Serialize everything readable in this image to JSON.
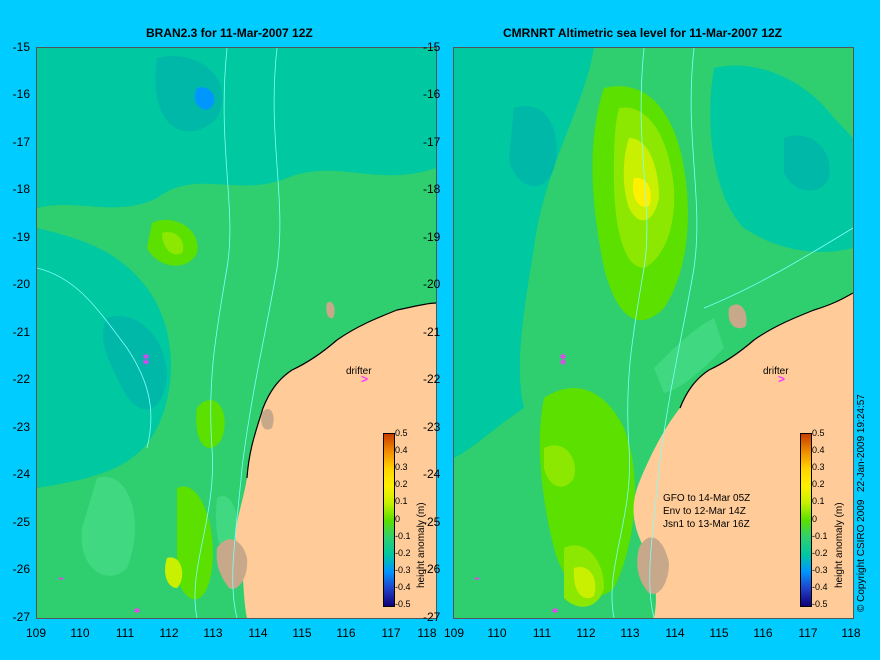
{
  "left_title": "BRAN2.3 for 11-Mar-2007 12Z",
  "right_title": "CMRNRT Altimetric sea level  for 11-Mar-2007 12Z",
  "y_ticks": [
    "-15",
    "-16",
    "-17",
    "-18",
    "-19",
    "-20",
    "-21",
    "-22",
    "-23",
    "-24",
    "-25",
    "-26",
    "-27"
  ],
  "x_ticks_left": [
    "109",
    "110",
    "111",
    "112",
    "113",
    "114",
    "115",
    "116",
    "117",
    "118"
  ],
  "x_ticks_right": [
    "109",
    "110",
    "111",
    "112",
    "113",
    "114",
    "115",
    "116",
    "117",
    "118"
  ],
  "drifter_label": "drifter",
  "colorbar": {
    "label": "height anomaly (m)",
    "ticks": [
      "0.5",
      "0.4",
      "0.3",
      "0.2",
      "0.1",
      "0",
      "-0.1",
      "-0.2",
      "-0.3",
      "-0.4",
      "-0.5"
    ],
    "colors": [
      "#c83c00",
      "#f08a00",
      "#ffd200",
      "#fff000",
      "#c8f000",
      "#5ce000",
      "#2fcf6f",
      "#00c8a0",
      "#0096ff",
      "#2040c8",
      "#10007a"
    ]
  },
  "satellite_info": "GFO to 14-Mar 05Z\nEnv to 12-Mar 14Z\nJsn1 to 13-Mar 16Z",
  "copyright": "© Copyright CSIRO 2009",
  "timestamp": "22-Jan-2009 19:24:57",
  "colors": {
    "background": "#00ccff",
    "land": "#ffcc99",
    "drifter": "#ff33ff"
  }
}
